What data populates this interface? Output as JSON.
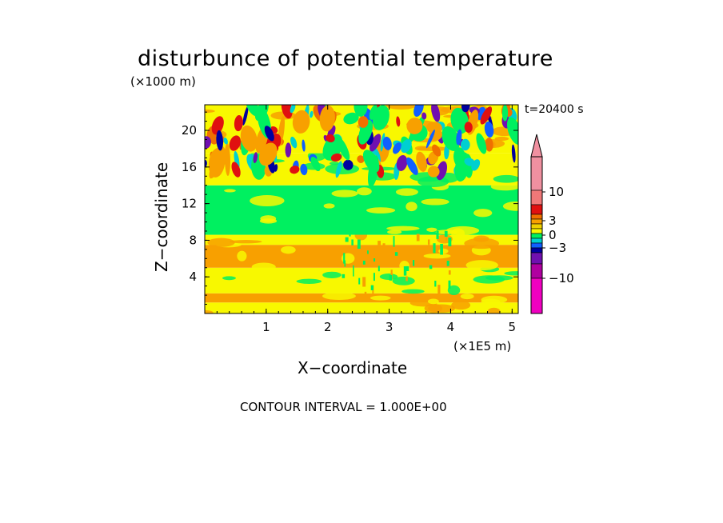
{
  "chart_data": {
    "type": "heatmap",
    "title": "disturbunce of potential temperature",
    "xlabel": "X−coordinate",
    "ylabel": "Z−coordinate",
    "x_unit": "(×1E5 m)",
    "y_unit": "(×1000 m)",
    "time_label": "t=20400 s",
    "footer": "CONTOUR INTERVAL = 1.000E+00",
    "xlim": [
      0,
      5.1
    ],
    "ylim": [
      0,
      22.8
    ],
    "x_ticks": [
      1,
      2,
      3,
      4,
      5
    ],
    "y_ticks": [
      4,
      8,
      12,
      16,
      20
    ],
    "x_tick_labels": [
      "1",
      "2",
      "3",
      "4",
      "5"
    ],
    "y_tick_labels": [
      "4",
      "8",
      "12",
      "16",
      "20"
    ],
    "colorbar": {
      "bins": [
        {
          "color": "#f090a0"
        },
        {
          "color": "#f07878"
        },
        {
          "color": "#e01010"
        },
        {
          "color": "#f07000"
        },
        {
          "color": "#f8a000"
        },
        {
          "color": "#f0d000"
        },
        {
          "color": "#f8f800"
        },
        {
          "color": "#00f060"
        },
        {
          "color": "#00d0d0"
        },
        {
          "color": "#1060ff"
        },
        {
          "color": "#0000a0"
        },
        {
          "color": "#7010b0"
        },
        {
          "color": "#b000a0"
        },
        {
          "color": "#f000c0"
        }
      ],
      "labels": [
        {
          "text": "10",
          "value": 10
        },
        {
          "text": "3",
          "value": 3
        },
        {
          "text": "0",
          "value": 0
        },
        {
          "text": "−3",
          "value": -3
        },
        {
          "text": "−10",
          "value": -10
        }
      ]
    },
    "layers": [
      {
        "zmin": 0,
        "zmax": 1.2,
        "color": "#f8f800",
        "patch_color": "#f8a000"
      },
      {
        "zmin": 1.2,
        "zmax": 2.2,
        "color": "#f8a000",
        "patch_color": "#f8f800"
      },
      {
        "zmin": 2.2,
        "zmax": 5,
        "color": "#f8f800",
        "patch_color": "#00f060"
      },
      {
        "zmin": 5,
        "zmax": 7.5,
        "color": "#f8a000",
        "patch_color": "#f8f800"
      },
      {
        "zmin": 7.5,
        "zmax": 8.6,
        "color": "#f8f800",
        "patch_color": "#f8a000"
      },
      {
        "zmin": 8.6,
        "zmax": 14,
        "color": "#00f060",
        "patch_color": "#f8f800"
      },
      {
        "zmin": 14,
        "zmax": 17.5,
        "color": "#f8f800",
        "patch_color": "#00f060"
      },
      {
        "zmin": 17.5,
        "zmax": 22.8,
        "color": "#f8f800",
        "patch_color": "#f8a000"
      }
    ]
  }
}
